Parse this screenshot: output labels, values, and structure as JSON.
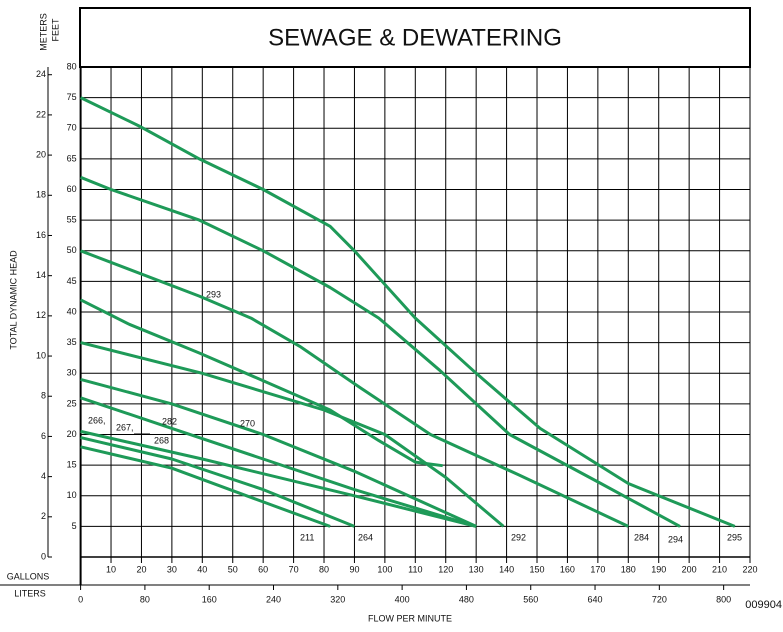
{
  "chart_data": {
    "type": "line",
    "title": "SEWAGE & DEWATERING",
    "ylabel": "TOTAL DYNAMIC HEAD",
    "ylabel_units": "FEET",
    "y2label_units": "METERS",
    "xlabel": "FLOW PER MINUTE",
    "xlabel_units": "GALLONS",
    "x2label_units": "LITERS",
    "code": "009904",
    "xlim": [
      0,
      220
    ],
    "xticks": [
      10,
      20,
      30,
      40,
      50,
      60,
      70,
      80,
      90,
      100,
      110,
      120,
      130,
      140,
      150,
      160,
      170,
      180,
      190,
      200,
      210,
      220
    ],
    "x2lim": [
      0,
      832.79
    ],
    "x2ticks": [
      0,
      80,
      160,
      240,
      320,
      400,
      480,
      560,
      640,
      720,
      800
    ],
    "ylim": [
      0,
      80
    ],
    "yticks": [
      5,
      10,
      15,
      20,
      25,
      30,
      35,
      40,
      45,
      50,
      55,
      60,
      65,
      70,
      75,
      80
    ],
    "y2lim": [
      0,
      24.384
    ],
    "y2ticks": [
      0,
      2,
      4,
      6,
      8,
      10,
      12,
      14,
      16,
      18,
      20,
      22,
      24
    ],
    "grid": true,
    "color": "#1e9a58",
    "series": [
      {
        "x": [
          0,
          19.5,
          39,
          60,
          82,
          90,
          110,
          130,
          151,
          180,
          215
        ],
        "values": [
          75,
          70.3,
          65,
          60,
          54,
          50,
          39,
          30,
          21,
          12,
          5
        ]
      },
      {
        "x": [
          0,
          10,
          39,
          60,
          82,
          98,
          118,
          141,
          171,
          197
        ],
        "values": [
          62,
          60,
          55,
          50,
          44,
          39,
          30.5,
          20,
          12,
          5
        ]
      },
      {
        "x": [
          0,
          39,
          56,
          72,
          92,
          115,
          144,
          180
        ],
        "values": [
          50,
          42.6,
          39,
          34.4,
          27.6,
          20,
          13.4,
          5
        ]
      },
      {
        "x": [
          0,
          16,
          39,
          59,
          82,
          98,
          110,
          119
        ],
        "values": [
          42,
          38,
          33.3,
          29,
          24,
          19,
          15.5,
          14.9
        ]
      },
      {
        "x": [
          0,
          40,
          80,
          100,
          120,
          139
        ],
        "values": [
          35,
          30,
          24,
          20,
          13,
          5
        ]
      },
      {
        "x": [
          0,
          30,
          60,
          90,
          130
        ],
        "values": [
          29,
          25,
          20,
          14,
          5
        ]
      },
      {
        "x": [
          0,
          30,
          60,
          90,
          130
        ],
        "values": [
          26,
          21,
          16,
          11,
          5
        ]
      },
      {
        "x": [
          0,
          40,
          90,
          130
        ],
        "values": [
          20.5,
          16,
          10,
          5
        ]
      },
      {
        "x": [
          0,
          30,
          60,
          90
        ],
        "values": [
          19.5,
          16,
          11,
          5
        ]
      },
      {
        "x": [
          0,
          30,
          60,
          82
        ],
        "values": [
          18,
          14.5,
          9,
          5
        ]
      }
    ],
    "annotations": [
      "266,",
      "267,",
      "282",
      "268",
      "270",
      "293",
      "211",
      "264",
      "292",
      "284",
      "294",
      "295"
    ]
  }
}
